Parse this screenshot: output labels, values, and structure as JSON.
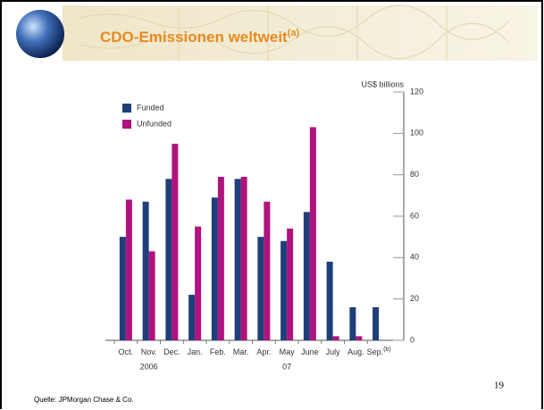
{
  "slide": {
    "title": "CDO-Emissionen weltweit",
    "title_sup": "(a)",
    "source": "Quelle:  JPMorgan Chase & Co.",
    "page_number": "19"
  },
  "chart_data": {
    "type": "bar",
    "unit_label": "US$ billions",
    "categories": [
      "Oct.",
      "Nov.",
      "Dec.",
      "Jan.",
      "Feb.",
      "Mar.",
      "Apr.",
      "May",
      "June",
      "July",
      "Aug.",
      "Sep."
    ],
    "last_category_sup": "(b)",
    "year_labels": [
      "2006",
      "07"
    ],
    "series": [
      {
        "name": "Funded",
        "color": "#1f3f7a",
        "values": [
          50,
          67,
          78,
          22,
          69,
          78,
          50,
          48,
          62,
          38,
          16,
          16
        ]
      },
      {
        "name": "Unfunded",
        "color": "#b0127e",
        "values": [
          68,
          43,
          95,
          55,
          79,
          79,
          67,
          54,
          103,
          2,
          2,
          0
        ]
      }
    ],
    "ylim": [
      0,
      120
    ],
    "yticks": [
      0,
      20,
      40,
      60,
      80,
      100,
      120
    ],
    "legend": "top-left"
  }
}
